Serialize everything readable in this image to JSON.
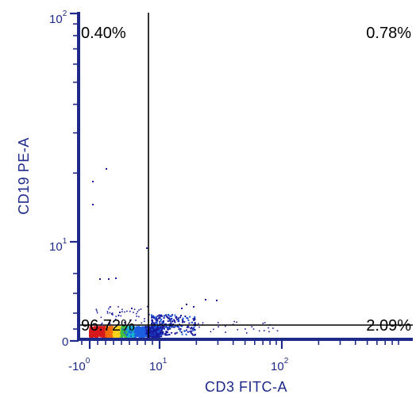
{
  "chart_data": {
    "type": "scatter",
    "title": "",
    "xlabel": "CD3 FITC-A",
    "ylabel": "CD19 PE-A",
    "x_scale": "biexponential",
    "y_scale": "biexponential",
    "x_tick_labels": [
      {
        "base": "-10",
        "exp": "0",
        "value": -1
      },
      {
        "base": "10",
        "exp": "1",
        "value": 10
      },
      {
        "base": "10",
        "exp": "2",
        "value": 100
      }
    ],
    "y_tick_labels": [
      {
        "base": "0",
        "exp": "",
        "value": 0
      },
      {
        "base": "10",
        "exp": "1",
        "value": 10
      },
      {
        "base": "10",
        "exp": "2",
        "value": 100
      }
    ],
    "quadrant_gate": {
      "x": 7,
      "y": 1.5
    },
    "quadrants": [
      {
        "position": "upper-left",
        "label": "0.40%",
        "percent": 0.4
      },
      {
        "position": "upper-right",
        "label": "0.78%",
        "percent": 0.78
      },
      {
        "position": "lower-left",
        "label": "96.72%",
        "percent": 96.72
      },
      {
        "position": "lower-right",
        "label": "2.09%",
        "percent": 2.09
      }
    ],
    "density_colors": [
      "#d7191c",
      "#f46d0a",
      "#f9d31c",
      "#3fbf3f",
      "#17b7c9",
      "#1d5ee0",
      "#1a1a9e"
    ],
    "grid": false,
    "legend": "none"
  }
}
